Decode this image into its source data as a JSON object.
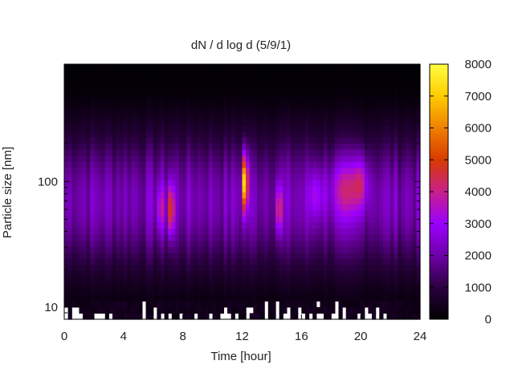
{
  "chart_data": {
    "type": "heatmap",
    "title": "dN / d log d (5/9/1)",
    "xlabel": "Time [hour]",
    "ylabel": "Particle size [nm]",
    "x_ticks": [
      "0",
      "4",
      "8",
      "12",
      "16",
      "20",
      "24"
    ],
    "y_ticks": [
      "10",
      "100"
    ],
    "xlim": [
      0,
      24
    ],
    "ylim_nm": [
      8,
      860
    ],
    "y_scale": "log",
    "colorbar": {
      "range": [
        0,
        8000
      ],
      "ticks": [
        "0",
        "1000",
        "2000",
        "3000",
        "4000",
        "5000",
        "6000",
        "7000",
        "8000"
      ],
      "colormap": [
        "#000000",
        "#2a0040",
        "#6f00a8",
        "#9b00ff",
        "#c8208a",
        "#d83a00",
        "#f08000",
        "#ffcc00",
        "#ffff40"
      ]
    },
    "background_level": 2200,
    "size_profile": {
      "peak_nm": 70,
      "log_width": 0.55
    },
    "events": [
      {
        "time_h": 6.5,
        "size_nm": 60,
        "value": 3300,
        "time_width_h": 0.25,
        "log_size_width": 0.18
      },
      {
        "time_h": 7.2,
        "size_nm": 60,
        "value": 4900,
        "time_width_h": 0.22,
        "log_size_width": 0.2
      },
      {
        "time_h": 12.2,
        "size_nm": 100,
        "value": 7800,
        "time_width_h": 0.18,
        "log_size_width": 0.22
      },
      {
        "time_h": 14.5,
        "size_nm": 60,
        "value": 4300,
        "time_width_h": 0.2,
        "log_size_width": 0.18
      },
      {
        "time_h": 17.0,
        "size_nm": 80,
        "value": 2900,
        "time_width_h": 0.5,
        "log_size_width": 0.2
      },
      {
        "time_h": 19.0,
        "size_nm": 90,
        "value": 3400,
        "time_width_h": 1.0,
        "log_size_width": 0.22
      },
      {
        "time_h": 20.0,
        "size_nm": 100,
        "value": 3300,
        "time_width_h": 0.5,
        "log_size_width": 0.2
      }
    ]
  }
}
